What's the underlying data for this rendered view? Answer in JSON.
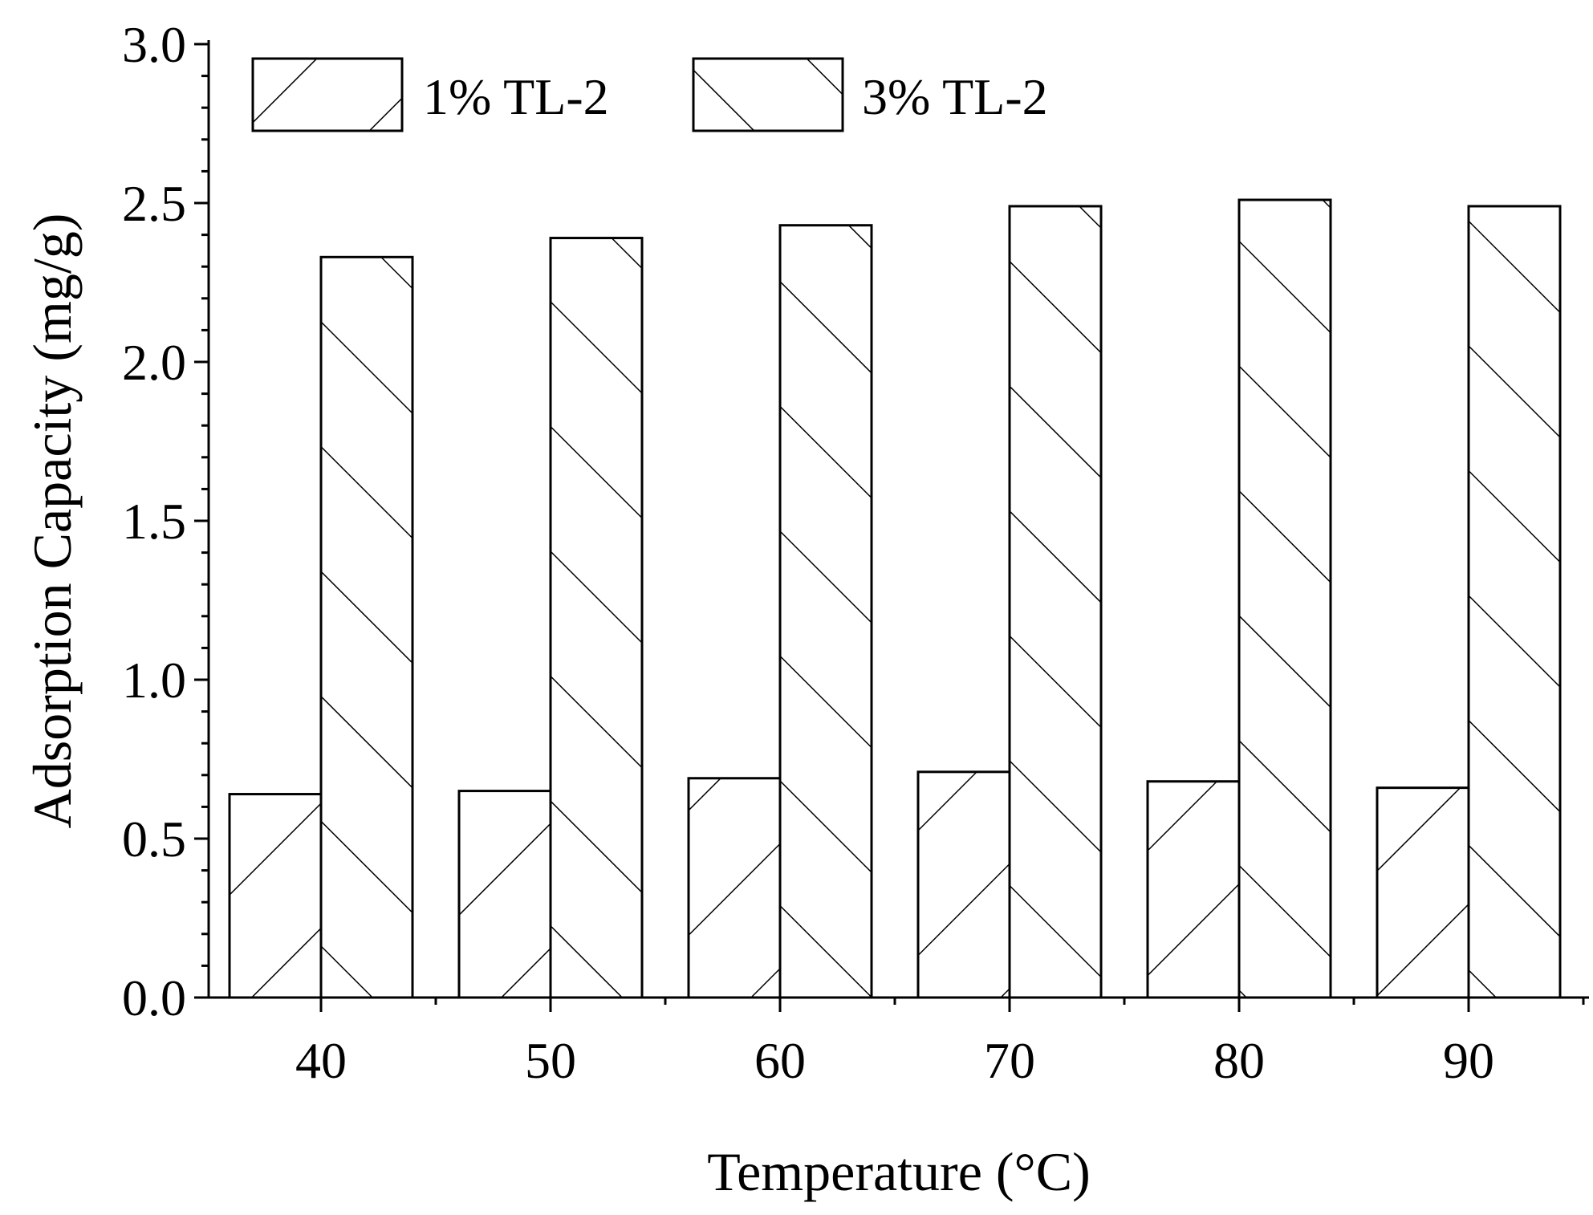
{
  "chart_data": {
    "type": "bar",
    "categories": [
      "40",
      "50",
      "60",
      "70",
      "80",
      "90"
    ],
    "series": [
      {
        "name": "1% TL-2",
        "values": [
          0.64,
          0.65,
          0.69,
          0.71,
          0.68,
          0.66
        ],
        "hatch": "forward-diagonal"
      },
      {
        "name": "3% TL-2",
        "values": [
          2.33,
          2.39,
          2.43,
          2.49,
          2.51,
          2.49
        ],
        "hatch": "backward-diagonal"
      }
    ],
    "title": "",
    "xlabel": "Temperature (°C)",
    "ylabel": "Adsorption Capacity (mg/g)",
    "ylim": [
      0,
      3.0
    ],
    "yticks": [
      "0.0",
      "0.5",
      "1.0",
      "1.5",
      "2.0",
      "2.5",
      "3.0"
    ],
    "grid": false,
    "legend_position": "top-left",
    "colors": {
      "bar_fill": "#ffffff",
      "stroke": "#000000"
    }
  }
}
